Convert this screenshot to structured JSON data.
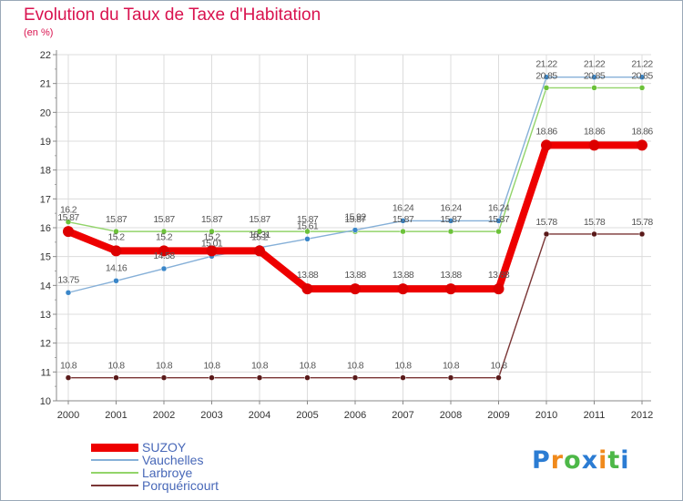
{
  "title": "Evolution du Taux de Taxe d'Habitation",
  "unit_label": "(en %)",
  "logo": {
    "text": "Proxiti",
    "letters": [
      {
        "ch": "P",
        "color": "#2b7cd3"
      },
      {
        "ch": "r",
        "color": "#f08a1c"
      },
      {
        "ch": "o",
        "color": "#4db848"
      },
      {
        "ch": "x",
        "color": "#2b7cd3"
      },
      {
        "ch": "i",
        "color": "#f08a1c"
      },
      {
        "ch": "t",
        "color": "#4db848"
      },
      {
        "ch": "i",
        "color": "#2b7cd3"
      }
    ]
  },
  "chart_data": {
    "type": "line",
    "title": "Evolution du Taux de Taxe d'Habitation",
    "ylabel": "(en %)",
    "xlabel": "",
    "ylim": [
      10,
      22
    ],
    "yticks": [
      10,
      11,
      12,
      13,
      14,
      15,
      16,
      17,
      18,
      19,
      20,
      21,
      22
    ],
    "grid": true,
    "legend_position": "bottom-left",
    "x": [
      "2000",
      "2001",
      "2002",
      "2003",
      "2004",
      "2005",
      "2006",
      "2007",
      "2008",
      "2009",
      "2010",
      "2011",
      "2012"
    ],
    "series": [
      {
        "name": "Porquéricourt",
        "color": "#7a3535",
        "marker_color": "#5a1a1a",
        "values": [
          10.8,
          10.8,
          10.8,
          10.8,
          10.8,
          10.8,
          10.8,
          10.8,
          10.8,
          10.8,
          15.78,
          15.78,
          15.78
        ],
        "labels": [
          "10.8",
          "10.8",
          "10.8",
          "10.8",
          "10.8",
          "10.8",
          "10.8",
          "10.8",
          "10.8",
          "10.8",
          "15.78",
          "15.78",
          "15.78"
        ]
      },
      {
        "name": "Larbroye",
        "color": "#92d46a",
        "marker_color": "#6cc23a",
        "values": [
          16.2,
          15.87,
          15.87,
          15.87,
          15.87,
          15.87,
          15.87,
          15.87,
          15.87,
          15.87,
          20.85,
          20.85,
          20.85
        ],
        "labels": [
          "16.2",
          "15.87",
          "15.87",
          "15.87",
          "15.87",
          "15.87",
          "15.87",
          "15.87",
          "15.87",
          "15.87",
          "20.85",
          "20.85",
          "20.85"
        ]
      },
      {
        "name": "Vauchelles",
        "color": "#86b0d8",
        "marker_color": "#3a86c8",
        "values": [
          13.75,
          14.16,
          14.58,
          15.01,
          15.31,
          15.61,
          15.92,
          16.24,
          16.24,
          16.24,
          21.22,
          21.22,
          21.22
        ],
        "labels": [
          "13.75",
          "14.16",
          "14.58",
          "15.01",
          "15.31",
          "15.61",
          "15.92",
          "16.24",
          "16.24",
          "16.24",
          "21.22",
          "21.22",
          "21.22"
        ]
      },
      {
        "name": "SUZOY",
        "color": "#ee0000",
        "marker_color": "#dd0000",
        "values": [
          15.87,
          15.2,
          15.2,
          15.2,
          15.2,
          13.88,
          13.88,
          13.88,
          13.88,
          13.88,
          18.86,
          18.86,
          18.86
        ],
        "labels": [
          "15.87",
          "15.2",
          "15.2",
          "15.2",
          "15.2",
          "13.88",
          "13.88",
          "13.88",
          "13.88",
          "13.88",
          "18.86",
          "18.86",
          "18.86"
        ]
      }
    ],
    "legend_order": [
      "SUZOY",
      "Vauchelles",
      "Larbroye",
      "Porquéricourt"
    ]
  }
}
